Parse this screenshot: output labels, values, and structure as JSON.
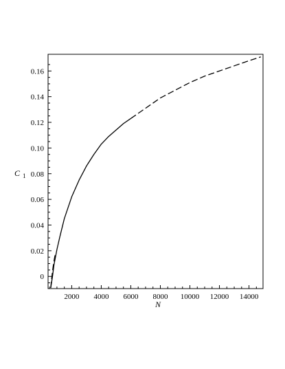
{
  "chart_data": {
    "type": "line",
    "title": "",
    "xlabel": "N",
    "ylabel_main": "C",
    "ylabel_sub": "1",
    "xlim": [
      400,
      14950
    ],
    "ylim": [
      -0.0095,
      0.173
    ],
    "x_ticks": [
      2000,
      4000,
      6000,
      8000,
      10000,
      12000,
      14000
    ],
    "y_ticks": [
      0,
      0.02,
      0.04,
      0.06,
      0.08,
      0.1,
      0.12,
      0.14,
      0.16
    ],
    "y_tick_labels": [
      "0",
      "0.02",
      "0.04",
      "0.06",
      "0.08",
      "0.10",
      "0.12",
      "0.14",
      "0.16"
    ],
    "grid": false,
    "series": [
      {
        "style": "solid",
        "x": [
          580,
          700,
          800,
          1000,
          1200,
          1500,
          2000,
          2500,
          3000,
          3500,
          4000,
          4500,
          5000,
          5500,
          6000
        ],
        "y": [
          -0.009,
          0.0,
          0.009,
          0.021,
          0.031,
          0.045,
          0.062,
          0.075,
          0.086,
          0.095,
          0.103,
          0.109,
          0.114,
          0.119,
          0.123
        ]
      },
      {
        "style": "dashed",
        "x": [
          580,
          640,
          700,
          760,
          830,
          900
        ],
        "y": [
          -0.009,
          -0.002,
          0.004,
          0.009,
          0.014,
          0.018
        ]
      },
      {
        "style": "dashed",
        "x": [
          6000,
          7000,
          8000,
          9000,
          10000,
          11000,
          12000,
          13000,
          14000,
          14800
        ],
        "y": [
          0.123,
          0.131,
          0.139,
          0.145,
          0.151,
          0.156,
          0.16,
          0.164,
          0.168,
          0.171
        ]
      }
    ]
  }
}
